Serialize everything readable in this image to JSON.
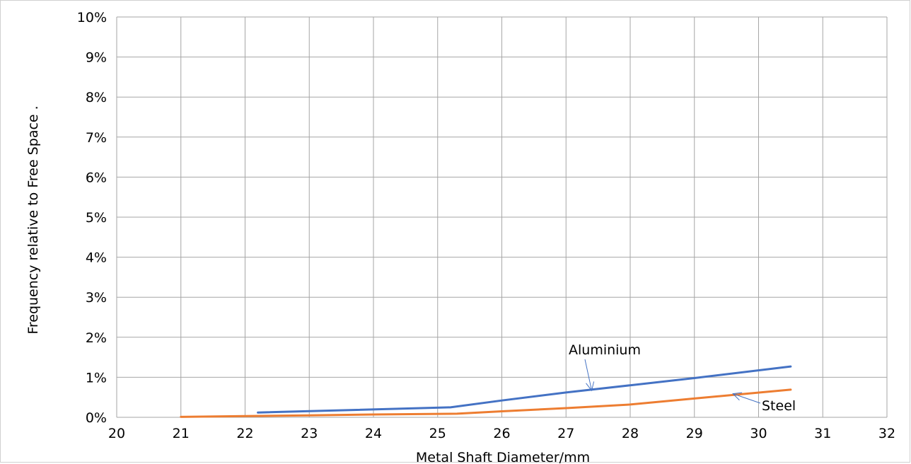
{
  "chart_data": {
    "type": "line",
    "xlabel": "Metal Shaft Diameter/mm",
    "ylabel": "Frequency relative to Free Space .",
    "xlim": [
      20,
      32
    ],
    "ylim": [
      0,
      0.1
    ],
    "grid": true,
    "x_ticks": [
      "20",
      "21",
      "22",
      "23",
      "24",
      "25",
      "26",
      "27",
      "28",
      "29",
      "30",
      "31",
      "32"
    ],
    "y_ticks": [
      "0%",
      "1%",
      "2%",
      "3%",
      "4%",
      "5%",
      "6%",
      "7%",
      "8%",
      "9%",
      "10%"
    ],
    "series": [
      {
        "name": "Aluminium",
        "color": "#4472c4",
        "x": [
          22.2,
          25.2,
          26.0,
          27.0,
          28.0,
          29.0,
          30.5
        ],
        "y": [
          0.0012,
          0.0025,
          0.0042,
          0.0062,
          0.008,
          0.0098,
          0.0127
        ]
      },
      {
        "name": "Steel",
        "color": "#ed7d31",
        "x": [
          21.0,
          22.0,
          23.0,
          24.0,
          25.3,
          26.0,
          27.0,
          28.0,
          29.0,
          30.5
        ],
        "y": [
          0.0001,
          0.0003,
          0.0005,
          0.0007,
          0.0009,
          0.0015,
          0.0023,
          0.0032,
          0.0047,
          0.0069
        ]
      }
    ],
    "annotations": [
      {
        "text": "Aluminium",
        "target_x": 27.4,
        "target_y": 0.0067,
        "color": "#4472c4"
      },
      {
        "text": "Steel",
        "target_x": 29.6,
        "target_y": 0.0059,
        "color": "#4472c4"
      }
    ]
  }
}
